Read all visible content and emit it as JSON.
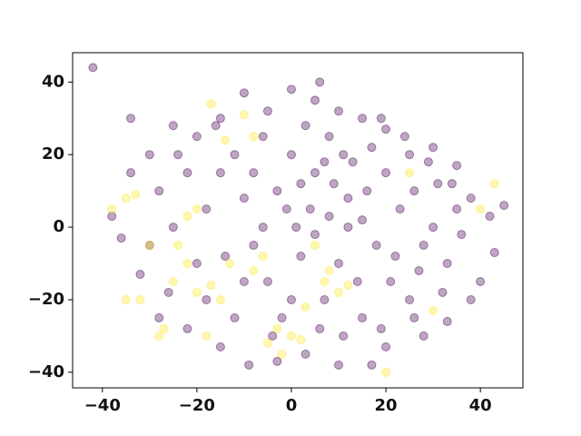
{
  "chart_data": {
    "type": "scatter",
    "xlim": [
      -46.3,
      49.0
    ],
    "ylim": [
      -44.3,
      48.1
    ],
    "xticks": [
      {
        "value": -40,
        "label": "−40"
      },
      {
        "value": -20,
        "label": "−20"
      },
      0,
      20,
      40
    ],
    "yticks": [
      {
        "value": -40,
        "label": "−40"
      },
      {
        "value": -20,
        "label": "−20"
      },
      0,
      20,
      40
    ],
    "series": [
      {
        "color": "#440154",
        "x": [
          -42,
          -34,
          -30,
          -25,
          -20,
          -15,
          -10,
          -5,
          0,
          5,
          6,
          10,
          15,
          20,
          25,
          30,
          35,
          38,
          42,
          45,
          43,
          40,
          38,
          33,
          28,
          20,
          17,
          10,
          3,
          -3,
          -9,
          -15,
          -22,
          -28,
          -32,
          -36,
          -38,
          -34,
          -28,
          -25,
          -20,
          -18,
          -15,
          -12,
          -10,
          -8,
          -5,
          -3,
          0,
          2,
          4,
          5,
          7,
          8,
          10,
          12,
          13,
          15,
          16,
          18,
          20,
          21,
          23,
          25,
          26,
          28,
          30,
          31,
          33,
          35,
          -22,
          -18,
          -12,
          -8,
          -6,
          -2,
          1,
          3,
          6,
          9,
          11,
          14,
          17,
          19,
          22,
          24,
          27,
          29,
          32,
          36,
          -26,
          -14,
          -4,
          0,
          2,
          5,
          8,
          12,
          -16,
          -30,
          -10,
          -1,
          7,
          15,
          26,
          34,
          -24,
          -6,
          11,
          19
        ],
        "values": [
          44,
          30,
          20,
          28,
          25,
          30,
          37,
          32,
          38,
          35,
          40,
          32,
          30,
          27,
          20,
          22,
          17,
          8,
          3,
          6,
          -7,
          -15,
          -20,
          -26,
          -30,
          -33,
          -38,
          -38,
          -35,
          -37,
          -38,
          -33,
          -28,
          -25,
          -13,
          -3,
          3,
          15,
          10,
          0,
          -10,
          5,
          15,
          20,
          8,
          -5,
          -15,
          10,
          20,
          -8,
          5,
          15,
          -20,
          25,
          -10,
          0,
          18,
          -25,
          10,
          -5,
          15,
          -15,
          5,
          -20,
          10,
          -5,
          0,
          12,
          -10,
          5,
          15,
          -20,
          -25,
          15,
          25,
          -25,
          0,
          28,
          -28,
          12,
          -30,
          -15,
          22,
          -28,
          -8,
          25,
          -12,
          18,
          -18,
          -2,
          -18,
          -8,
          -30,
          -20,
          12,
          -2,
          3,
          8,
          28,
          -5,
          -15,
          5,
          18,
          2,
          -25,
          12,
          20,
          0,
          20,
          30
        ]
      },
      {
        "color": "#fde725",
        "x": [
          -33,
          -35,
          -38,
          -32,
          -30,
          -28,
          -25,
          -22,
          -20,
          -18,
          -17,
          -15,
          -13,
          -20,
          -24,
          -17,
          -10,
          -14,
          -8,
          7,
          8,
          10,
          12,
          5,
          3,
          -3,
          0,
          -5,
          20,
          -6,
          -8,
          -22,
          -27,
          -35,
          25,
          40,
          43,
          30,
          -2,
          2
        ],
        "values": [
          9,
          8,
          5,
          -20,
          -5,
          -30,
          -15,
          -10,
          -18,
          -30,
          -16,
          -20,
          -10,
          5,
          -5,
          34,
          31,
          24,
          25,
          -15,
          -12,
          -18,
          -16,
          -5,
          -22,
          -28,
          -30,
          -32,
          -40,
          -8,
          -12,
          3,
          -28,
          -20,
          15,
          5,
          12,
          -23,
          -35,
          -31
        ]
      }
    ]
  }
}
